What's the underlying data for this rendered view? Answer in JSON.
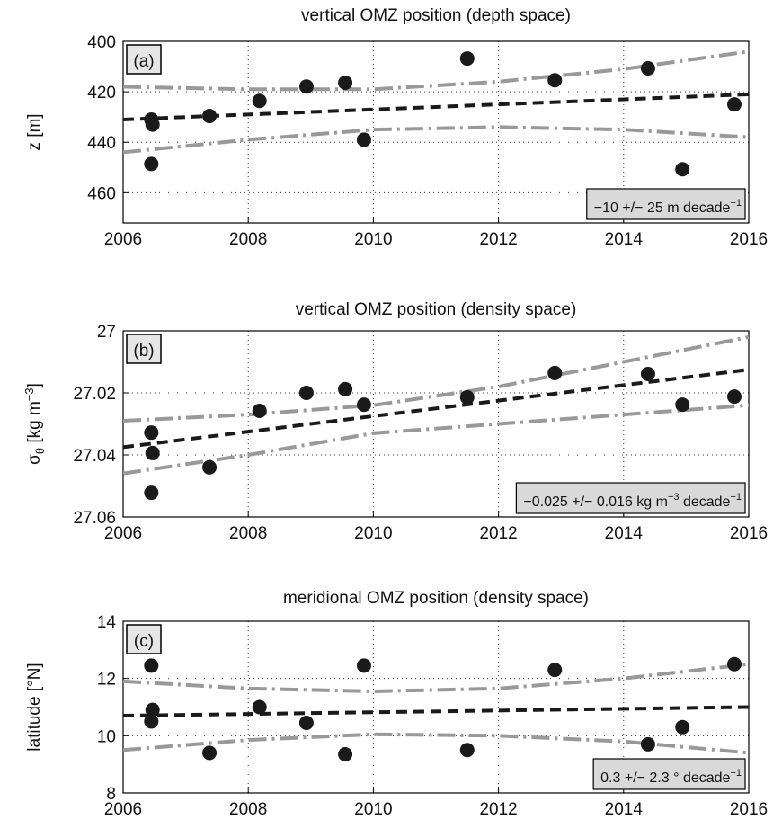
{
  "chart_data": [
    {
      "type": "scatter",
      "title": "vertical OMZ position (depth space)",
      "panel_label": "(a)",
      "ylabel": [
        {
          "text": "z [m]"
        }
      ],
      "annotation": [
        {
          "text": "−10 +/− 25 m decade"
        },
        {
          "text": "−1",
          "shift": "super"
        }
      ],
      "xlim": [
        2006,
        2016
      ],
      "xticks": [
        2006,
        2008,
        2010,
        2012,
        2014,
        2016
      ],
      "ylim": [
        400,
        472
      ],
      "yticks": [
        400,
        420,
        440,
        460
      ],
      "y_reversed": true,
      "grid": true,
      "series": [
        {
          "style": "marker",
          "color": "#1a1a1a",
          "x": [
            2006.45,
            2006.47,
            2006.45,
            2007.38,
            2008.18,
            2008.93,
            2009.55,
            2009.85,
            2011.5,
            2012.9,
            2014.39,
            2014.94,
            2015.77
          ],
          "values": [
            431,
            433,
            448.6,
            429.6,
            423.6,
            417.9,
            416.4,
            439,
            406.8,
            415.4,
            410.7,
            450.7,
            425
          ]
        },
        {
          "style": "dashed",
          "color": "#1a1a1a",
          "x": [
            2006,
            2008,
            2010,
            2012,
            2014,
            2016
          ],
          "values": [
            431,
            429,
            427,
            425,
            423,
            421
          ]
        },
        {
          "style": "dashdot",
          "color": "#999999",
          "x": [
            2006,
            2008,
            2010,
            2012,
            2014,
            2016
          ],
          "values": [
            418,
            419,
            419,
            416,
            411,
            404
          ]
        },
        {
          "style": "dashdot",
          "color": "#999999",
          "x": [
            2006,
            2008,
            2010,
            2012,
            2014,
            2016
          ],
          "values": [
            444,
            439,
            435,
            434,
            435,
            438
          ]
        }
      ]
    },
    {
      "type": "scatter",
      "title": "vertical OMZ position (density space)",
      "panel_label": "(b)",
      "ylabel": [
        {
          "text": "σ"
        },
        {
          "text": "θ",
          "shift": "sub"
        },
        {
          "text": " [kg m"
        },
        {
          "text": "−3",
          "shift": "super"
        },
        {
          "text": "]"
        }
      ],
      "annotation": [
        {
          "text": "−0.025 +/− 0.016 kg m"
        },
        {
          "text": "−3",
          "shift": "super"
        },
        {
          "text": " decade"
        },
        {
          "text": "−1",
          "shift": "super"
        }
      ],
      "xlim": [
        2006,
        2016
      ],
      "xticks": [
        2006,
        2008,
        2010,
        2012,
        2014,
        2016
      ],
      "ylim": [
        27,
        27.06
      ],
      "yticks": [
        27,
        27.02,
        27.04,
        27.06
      ],
      "y_reversed": true,
      "grid": true,
      "series": [
        {
          "style": "marker",
          "color": "#1a1a1a",
          "x": [
            2006.45,
            2006.47,
            2006.45,
            2007.38,
            2008.18,
            2008.93,
            2009.55,
            2009.85,
            2011.5,
            2012.9,
            2014.39,
            2014.94,
            2015.77
          ],
          "values": [
            27.0328,
            27.0394,
            27.0522,
            27.044,
            27.0258,
            27.02,
            27.0188,
            27.0238,
            27.0214,
            27.0136,
            27.0139,
            27.0238,
            27.0212
          ]
        },
        {
          "style": "dashed",
          "color": "#1a1a1a",
          "x": [
            2006,
            2008,
            2010,
            2012,
            2014,
            2016
          ],
          "values": [
            27.0375,
            27.0325,
            27.0275,
            27.0225,
            27.0175,
            27.0125
          ]
        },
        {
          "style": "dashdot",
          "color": "#999999",
          "x": [
            2006,
            2008,
            2010,
            2012,
            2014,
            2016
          ],
          "values": [
            27.029,
            27.027,
            27.024,
            27.018,
            27.01,
            27.002
          ]
        },
        {
          "style": "dashdot",
          "color": "#999999",
          "x": [
            2006,
            2008,
            2010,
            2012,
            2014,
            2016
          ],
          "values": [
            27.046,
            27.04,
            27.033,
            27.03,
            27.027,
            27.024
          ]
        }
      ]
    },
    {
      "type": "scatter",
      "title": "meridional OMZ position (density space)",
      "panel_label": "(c)",
      "ylabel": [
        {
          "text": "latitude [°N]"
        }
      ],
      "annotation": [
        {
          "text": "0.3 +/− 2.3 ° decade"
        },
        {
          "text": "−1",
          "shift": "super"
        }
      ],
      "xlim": [
        2006,
        2016
      ],
      "xticks": [
        2006,
        2008,
        2010,
        2012,
        2014,
        2016
      ],
      "ylim": [
        8,
        14
      ],
      "yticks": [
        8,
        10,
        12,
        14
      ],
      "y_reversed": false,
      "grid": true,
      "series": [
        {
          "style": "marker",
          "color": "#1a1a1a",
          "x": [
            2006.45,
            2006.47,
            2006.45,
            2007.38,
            2008.18,
            2008.93,
            2009.55,
            2009.85,
            2011.5,
            2012.9,
            2014.39,
            2014.94,
            2015.77
          ],
          "values": [
            12.45,
            10.9,
            10.5,
            9.4,
            11.0,
            10.45,
            9.35,
            12.45,
            9.5,
            12.3,
            9.7,
            10.3,
            12.5
          ]
        },
        {
          "style": "dashed",
          "color": "#1a1a1a",
          "x": [
            2006,
            2008,
            2010,
            2012,
            2014,
            2016
          ],
          "values": [
            10.7,
            10.76,
            10.82,
            10.88,
            10.94,
            11.0
          ]
        },
        {
          "style": "dashdot",
          "color": "#999999",
          "x": [
            2006,
            2008,
            2010,
            2012,
            2014,
            2016
          ],
          "values": [
            11.9,
            11.65,
            11.55,
            11.65,
            12.0,
            12.5
          ]
        },
        {
          "style": "dashdot",
          "color": "#999999",
          "x": [
            2006,
            2008,
            2010,
            2012,
            2014,
            2016
          ],
          "values": [
            9.5,
            9.85,
            10.05,
            10.0,
            9.8,
            9.4
          ]
        }
      ]
    }
  ]
}
